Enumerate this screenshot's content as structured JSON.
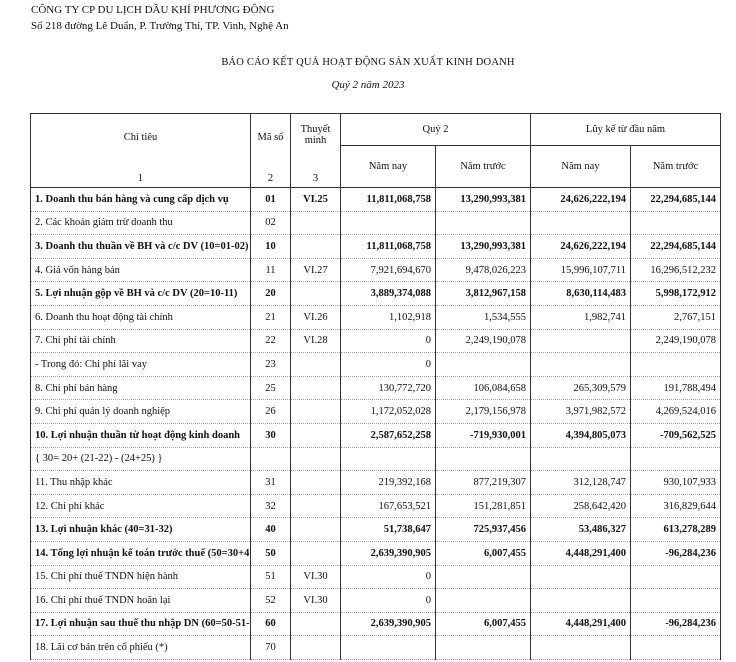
{
  "header": {
    "company": "CÔNG TY CP DU LỊCH DẦU KHÍ PHƯƠNG ĐÔNG",
    "address": "Số 218 đường Lê Duẩn, P. Trường Thi, TP. Vinh, Nghệ An"
  },
  "title": "BÁO CÁO KẾT QUẢ HOẠT ĐỘNG SẢN XUẤT KINH DOANH",
  "subtitle": "Quý 2 năm 2023",
  "table": {
    "columns": {
      "label": "Chỉ tiêu",
      "label_no": "1",
      "code": "Mã số",
      "code_no": "2",
      "note": "Thuyết minh",
      "note_no": "3",
      "quarter": "Quý 2",
      "ytd": "Lũy kế từ đầu năm",
      "q_this_year": "Năm nay",
      "q_last_year": "Năm trước",
      "ytd_this_year": "Năm nay",
      "ytd_last_year": "Năm trước"
    },
    "rows": [
      {
        "cells": [
          "1. Doanh thu bán hàng và cung cấp dịch vụ",
          "01",
          "VI.25",
          "11,811,068,758",
          "13,290,993,381",
          "24,626,222,194",
          "22,294,685,144"
        ],
        "bold": true
      },
      {
        "cells": [
          "2. Các khoản giảm trừ doanh thu",
          "02",
          null,
          null,
          null,
          null,
          null
        ],
        "bold": false
      },
      {
        "cells": [
          "3. Doanh thu thuần về BH và c/c DV (10=01-02)",
          "10",
          null,
          "11,811,068,758",
          "13,290,993,381",
          "24,626,222,194",
          "22,294,685,144"
        ],
        "bold": true
      },
      {
        "cells": [
          "4. Giá vốn hàng bán",
          "11",
          "VI.27",
          "7,921,694,670",
          "9,478,026,223",
          "15,996,107,711",
          "16,296,512,232"
        ],
        "bold": false
      },
      {
        "cells": [
          "5. Lợi nhuận gộp về BH và c/c DV (20=10-11)",
          "20",
          null,
          "3,889,374,088",
          "3,812,967,158",
          "8,630,114,483",
          "5,998,172,912"
        ],
        "bold": true
      },
      {
        "cells": [
          "6. Doanh thu hoạt động tài chính",
          "21",
          "VI.26",
          "1,102,918",
          "1,534,555",
          "1,982,741",
          "2,767,151"
        ],
        "bold": false
      },
      {
        "cells": [
          "7. Chi phí tài chính",
          "22",
          "VI.28",
          "0",
          "2,249,190,078",
          null,
          "2,249,190,078"
        ],
        "bold": false
      },
      {
        "cells": [
          "- Trong đó: Chi phí lãi vay",
          "23",
          null,
          "0",
          null,
          null,
          null
        ],
        "bold": false
      },
      {
        "cells": [
          "8. Chi phí bán hàng",
          "25",
          null,
          "130,772,720",
          "106,084,658",
          "265,309,579",
          "191,788,494"
        ],
        "bold": false
      },
      {
        "cells": [
          "9. Chi phí quản lý doanh nghiệp",
          "26",
          null,
          "1,172,052,028",
          "2,179,156,978",
          "3,971,982,572",
          "4,269,524,016"
        ],
        "bold": false
      },
      {
        "cells": [
          "10. Lợi nhuận thuần từ hoạt động kinh doanh",
          "30",
          null,
          "2,587,652,258",
          "-719,930,001",
          "4,394,805,073",
          "-709,562,525"
        ],
        "bold": true
      },
      {
        "cells": [
          "{ 30= 20+ (21-22) - (24+25) }",
          null,
          null,
          null,
          null,
          null,
          null
        ],
        "bold": false
      },
      {
        "cells": [
          "11. Thu nhập khác",
          "31",
          null,
          "219,392,168",
          "877,219,307",
          "312,128,747",
          "930,107,933"
        ],
        "bold": false
      },
      {
        "cells": [
          "12. Chi phí khác",
          "32",
          null,
          "167,653,521",
          "151,281,851",
          "258,642,420",
          "316,829,644"
        ],
        "bold": false
      },
      {
        "cells": [
          "13. Lợi nhuận khác (40=31-32)",
          "40",
          null,
          "51,738,647",
          "725,937,456",
          "53,486,327",
          "613,278,289"
        ],
        "bold": true
      },
      {
        "cells": [
          "14. Tổng lợi nhuận kế toán trước thuế (50=30+4",
          "50",
          null,
          "2,639,390,905",
          "6,007,455",
          "4,448,291,400",
          "-96,284,236"
        ],
        "bold": true
      },
      {
        "cells": [
          "15. Chi phí thuế TNDN hiện hành",
          "51",
          "VI.30",
          "0",
          null,
          null,
          null
        ],
        "bold": false
      },
      {
        "cells": [
          "16. Chi phí thuế TNDN hoãn lại",
          "52",
          "VI.30",
          "0",
          null,
          null,
          null
        ],
        "bold": false
      },
      {
        "cells": [
          "17. Lợi nhuận sau thuế thu nhập DN (60=50-51-",
          "60",
          null,
          "2,639,390,905",
          "6,007,455",
          "4,448,291,400",
          "-96,284,236"
        ],
        "bold": true
      },
      {
        "cells": [
          "18. Lãi cơ bản trên cổ phiếu (*)",
          "70",
          null,
          null,
          null,
          null,
          null
        ],
        "bold": false
      }
    ]
  }
}
